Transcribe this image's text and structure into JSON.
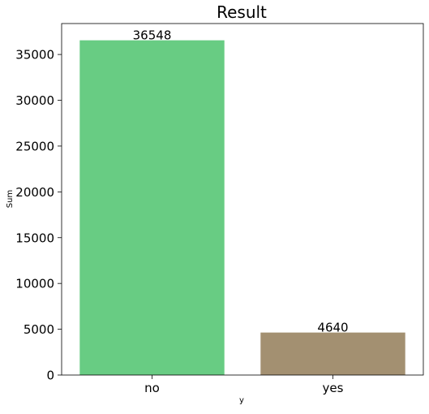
{
  "chart_data": {
    "type": "bar",
    "title": "Result",
    "xlabel": "y",
    "ylabel": "Sum",
    "categories": [
      "no",
      "yes"
    ],
    "values": [
      36548,
      4640
    ],
    "data_labels": [
      "36548",
      "4640"
    ],
    "colors": [
      "#68cc83",
      "#a39071"
    ],
    "ylim": [
      0,
      38377
    ],
    "yticks": [
      0,
      5000,
      10000,
      15000,
      20000,
      25000,
      30000,
      35000
    ],
    "ytick_labels": [
      "0",
      "5000",
      "10000",
      "15000",
      "20000",
      "25000",
      "30000",
      "35000"
    ],
    "grid": false,
    "legend": "none"
  }
}
